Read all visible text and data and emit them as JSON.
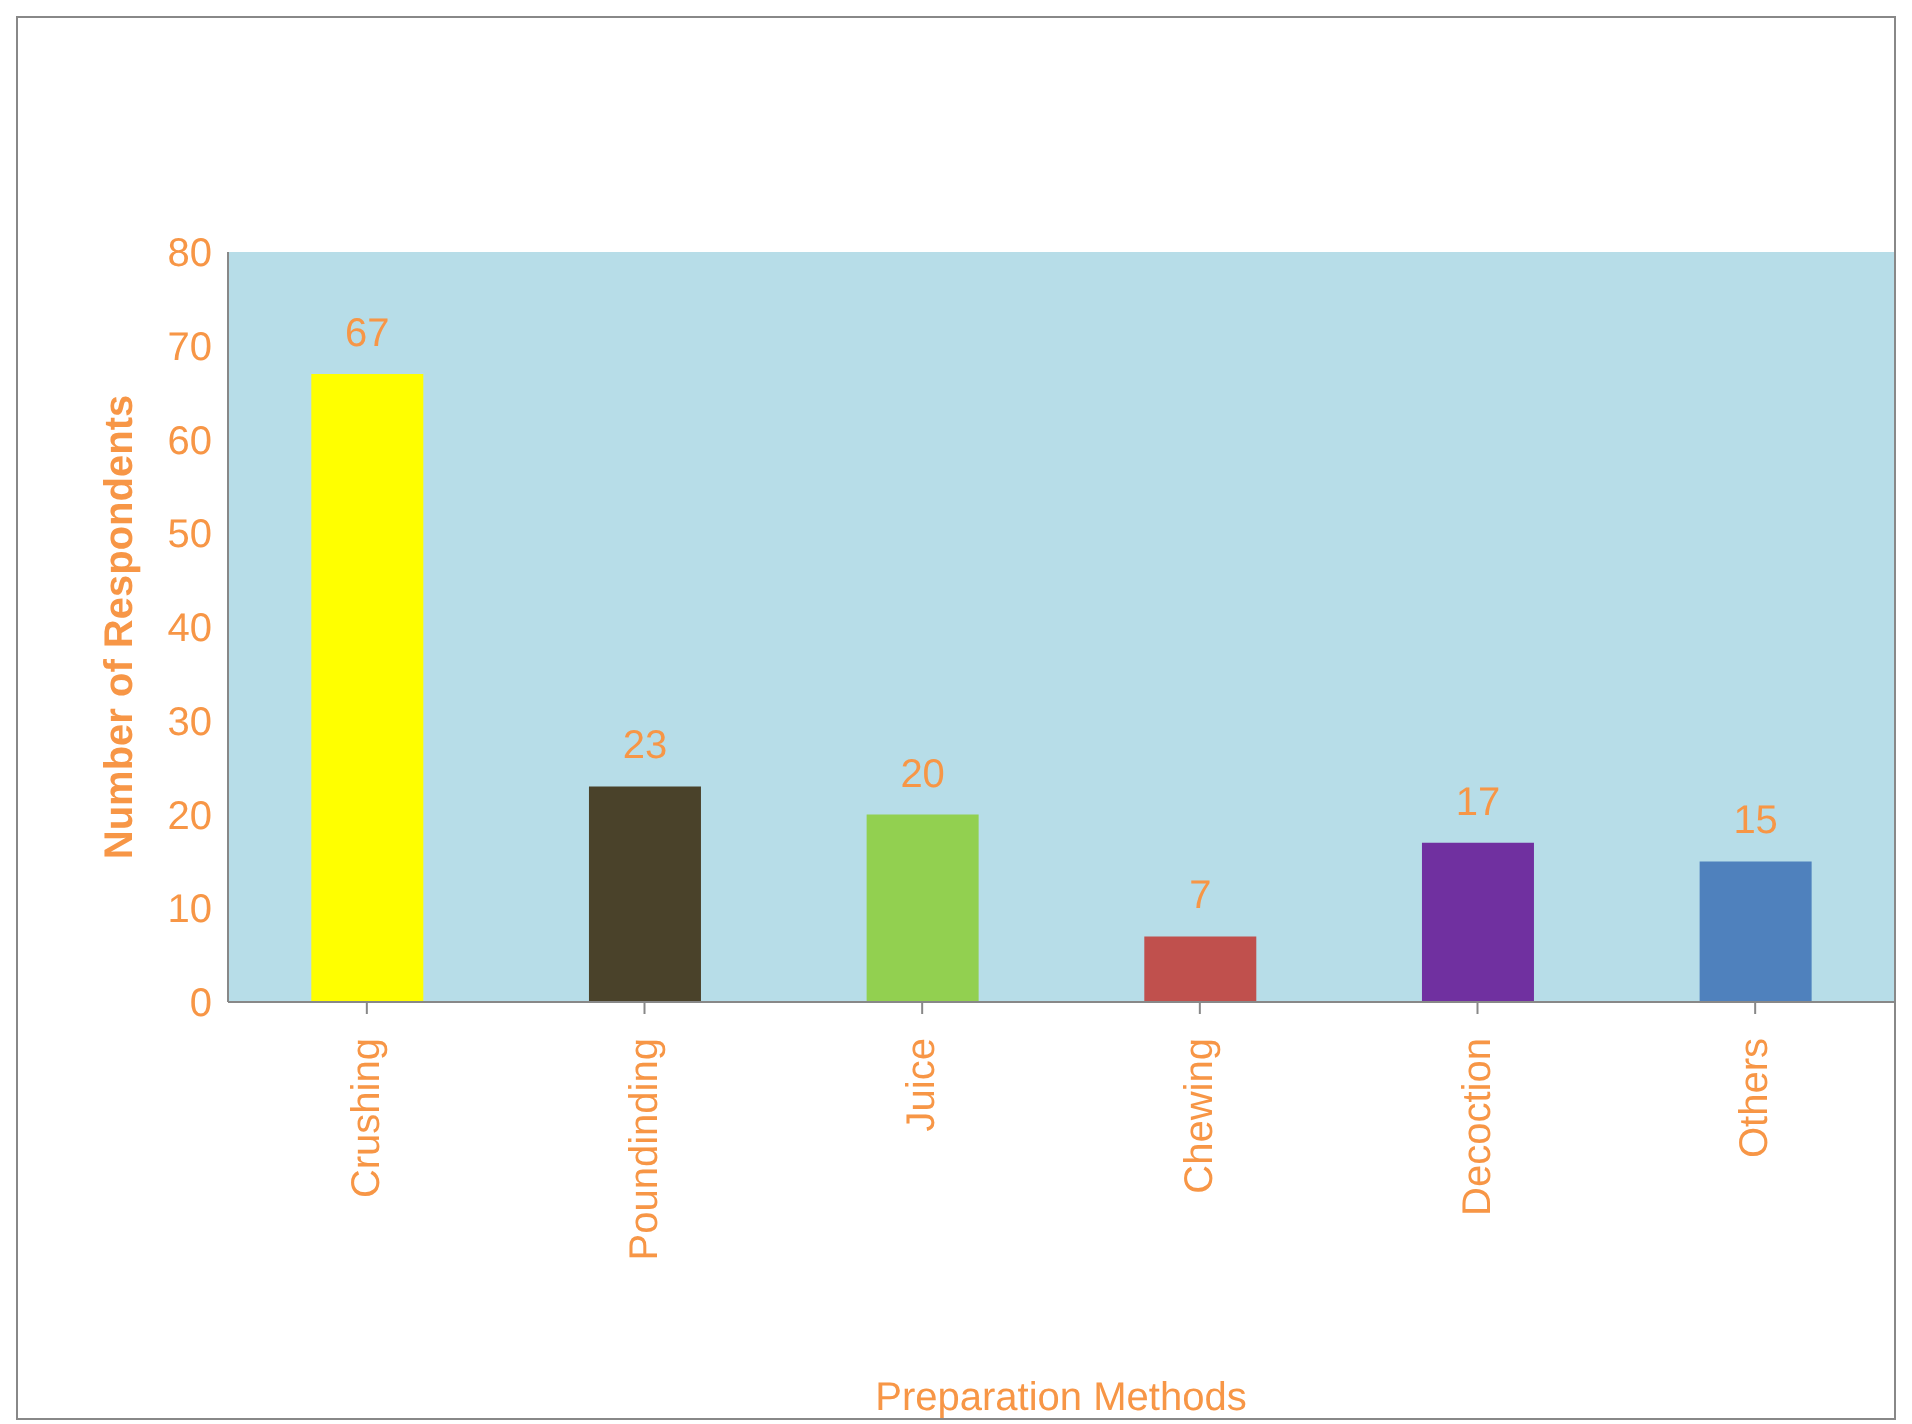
{
  "chart_data": {
    "type": "bar",
    "xlabel": "Preparation Methods",
    "ylabel": "Number of Respondents",
    "categories": [
      "Crushing",
      "Poundinding",
      "Juice",
      "Chewing",
      "Decoction",
      "Others"
    ],
    "values": [
      67,
      23,
      20,
      7,
      17,
      15
    ],
    "colors": [
      "#ffff00",
      "#4a422a",
      "#92d050",
      "#c0504d",
      "#7030a0",
      "#4f81bd"
    ],
    "ylim": [
      0,
      80
    ],
    "yticks": [
      0,
      10,
      20,
      30,
      40,
      50,
      60,
      70,
      80
    ],
    "grid": false,
    "data_labels": true
  }
}
